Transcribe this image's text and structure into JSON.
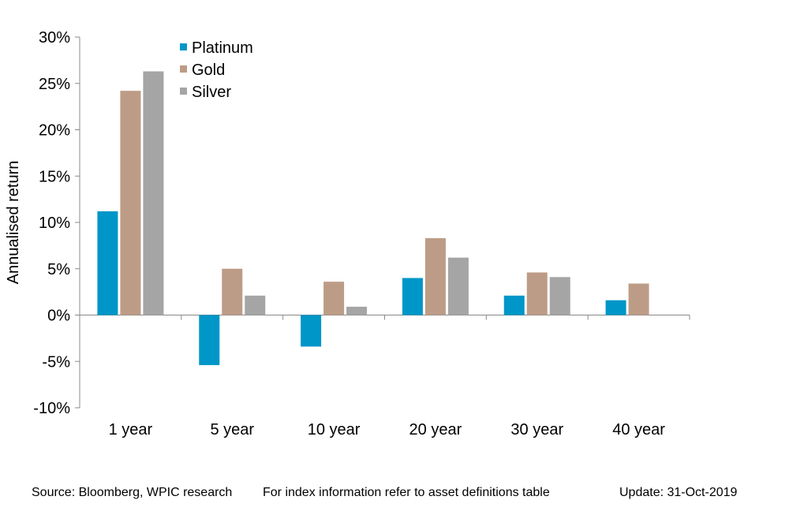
{
  "chart_data": {
    "type": "bar",
    "categories": [
      "1 year",
      "5 year",
      "10 year",
      "20 year",
      "30 year",
      "40 year"
    ],
    "series": [
      {
        "name": "Platinum",
        "color": "#0096C8",
        "values": [
          11.2,
          -5.4,
          -3.4,
          4.0,
          2.1,
          1.6
        ]
      },
      {
        "name": "Gold",
        "color": "#BD9C87",
        "values": [
          24.2,
          5.0,
          3.6,
          8.3,
          4.6,
          3.4
        ]
      },
      {
        "name": "Silver",
        "color": "#A5A5A5",
        "values": [
          26.3,
          2.1,
          0.9,
          6.2,
          4.1,
          null
        ]
      }
    ],
    "ylabel": "Annualised return",
    "ylim": [
      -10,
      30
    ],
    "yticks": [
      -10,
      -5,
      0,
      5,
      10,
      15,
      20,
      25,
      30
    ],
    "ytick_labels": [
      "-10%",
      "-5%",
      "0%",
      "5%",
      "10%",
      "15%",
      "20%",
      "25%",
      "30%"
    ],
    "grid": false,
    "legend_position": "top-left"
  },
  "footer": {
    "source": "Source: Bloomberg, WPIC research",
    "note": "For index information refer to asset definitions table",
    "update": "Update: 31-Oct-2019"
  }
}
